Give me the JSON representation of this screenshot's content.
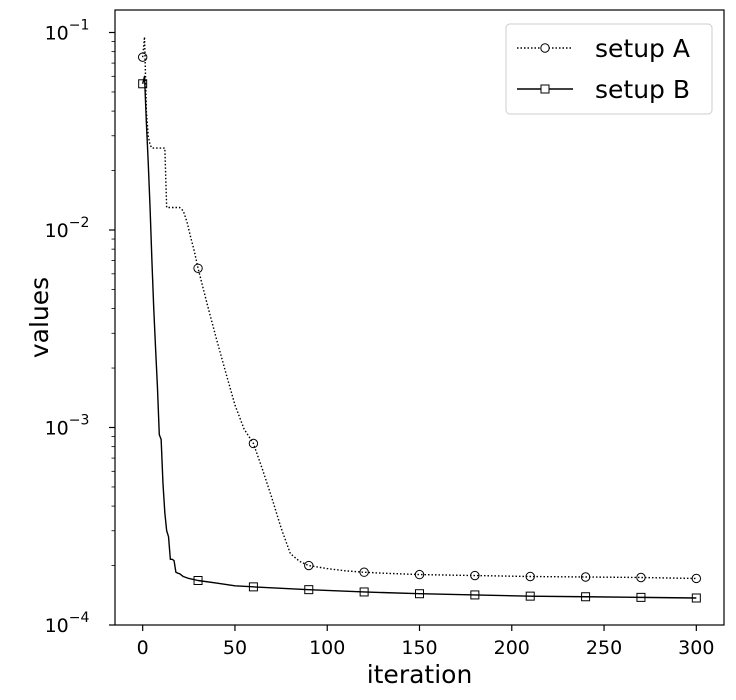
{
  "chart_data": {
    "type": "line",
    "xlabel": "iteration",
    "ylabel": "values",
    "xlim": [
      -15,
      315
    ],
    "ylim": [
      0.0001,
      0.13
    ],
    "yscale": "log",
    "xticks": [
      0,
      50,
      100,
      150,
      200,
      250,
      300
    ],
    "xtick_labels": [
      "0",
      "50",
      "100",
      "150",
      "200",
      "250",
      "300"
    ],
    "yticks": [
      0.0001,
      0.001,
      0.01,
      0.1
    ],
    "ytick_labels": [
      {
        "base": "10",
        "exp": "−4"
      },
      {
        "base": "10",
        "exp": "−3"
      },
      {
        "base": "10",
        "exp": "−2"
      },
      {
        "base": "10",
        "exp": "−1"
      }
    ],
    "grid": false,
    "legend_position": "upper-right",
    "series": [
      {
        "name": "setup A",
        "line_style": "dotted",
        "marker": "circle",
        "color": "#000000",
        "x": [
          0,
          1,
          2,
          3,
          4,
          5,
          6,
          7,
          8,
          9,
          10,
          11,
          12,
          13,
          14,
          15,
          16,
          18,
          20,
          22,
          24,
          26,
          28,
          30,
          35,
          40,
          45,
          50,
          55,
          60,
          65,
          70,
          75,
          80,
          85,
          90,
          100,
          110,
          120,
          130,
          150,
          180,
          210,
          240,
          270,
          300
        ],
        "y": [
          0.075,
          0.095,
          0.04,
          0.03,
          0.027,
          0.026,
          0.026,
          0.026,
          0.026,
          0.026,
          0.026,
          0.026,
          0.026,
          0.013,
          0.013,
          0.013,
          0.013,
          0.013,
          0.013,
          0.0125,
          0.011,
          0.0092,
          0.0078,
          0.0064,
          0.0042,
          0.0028,
          0.0019,
          0.0013,
          0.00098,
          0.00083,
          0.00061,
          0.00044,
          0.00031,
          0.00023,
          0.00021,
          0.0002,
          0.000193,
          0.000188,
          0.000185,
          0.000183,
          0.00018,
          0.000178,
          0.000176,
          0.000175,
          0.000174,
          0.000172
        ],
        "marker_x": [
          0,
          30,
          60,
          90,
          120,
          150,
          180,
          210,
          240,
          270,
          300
        ],
        "marker_y": [
          0.075,
          0.0064,
          0.00083,
          0.0002,
          0.000185,
          0.00018,
          0.000178,
          0.000176,
          0.000175,
          0.000174,
          0.000172
        ]
      },
      {
        "name": "setup B",
        "line_style": "solid",
        "marker": "square",
        "color": "#000000",
        "x": [
          0,
          1,
          2,
          3,
          4,
          5,
          6,
          7,
          8,
          9,
          10,
          11,
          12,
          13,
          14,
          15,
          16,
          17,
          18,
          19,
          20,
          22,
          25,
          30,
          40,
          50,
          60,
          90,
          120,
          150,
          180,
          210,
          240,
          270,
          300
        ],
        "y": [
          0.055,
          0.06,
          0.035,
          0.022,
          0.013,
          0.007,
          0.004,
          0.0025,
          0.0016,
          0.00092,
          0.00087,
          0.00052,
          0.00037,
          0.0003,
          0.00028,
          0.000215,
          0.000215,
          0.000212,
          0.000185,
          0.000183,
          0.000182,
          0.000176,
          0.000172,
          0.000168,
          0.000163,
          0.000158,
          0.000156,
          0.000151,
          0.000147,
          0.000144,
          0.000142,
          0.00014,
          0.000139,
          0.000138,
          0.000137
        ],
        "marker_x": [
          0,
          30,
          60,
          90,
          120,
          150,
          180,
          210,
          240,
          270,
          300
        ],
        "marker_y": [
          0.055,
          0.000168,
          0.000156,
          0.000151,
          0.000147,
          0.000144,
          0.000142,
          0.00014,
          0.000139,
          0.000138,
          0.000137
        ]
      }
    ]
  }
}
